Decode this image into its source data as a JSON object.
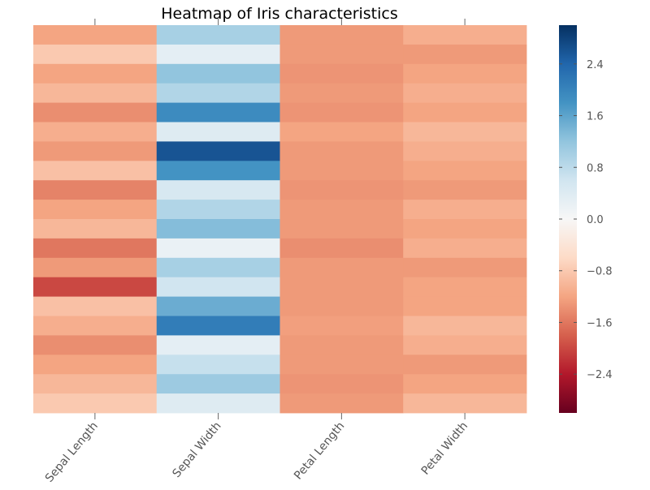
{
  "chart_data": {
    "type": "heatmap",
    "title": "Heatmap of Iris characteristics",
    "xlabel": "",
    "ylabel": "",
    "columns": [
      "Sepal Length",
      "Sepal Width",
      "Petal Length",
      "Petal Width"
    ],
    "row_count": 150,
    "colorscale": "RdBu",
    "colorbar": {
      "range": [
        -3.0,
        3.0
      ],
      "ticks": [
        -2.4,
        -1.6,
        -0.8,
        0.0,
        0.8,
        1.6,
        2.4
      ],
      "tick_labels": [
        "−2.4",
        "−1.6",
        "−0.8",
        "0.0",
        "0.8",
        "1.6",
        "2.4"
      ]
    },
    "values": [
      [
        -1.2,
        -0.8,
        -1.2,
        -1.0,
        -1.4,
        -1.1,
        -1.3,
        -0.9,
        -1.5,
        -1.2,
        -1.0,
        -1.6,
        -1.3,
        -2.0,
        -0.9,
        -1.1,
        -1.4,
        -1.2,
        -1.0,
        -0.8
      ],
      [
        1.0,
        0.3,
        1.2,
        0.9,
        1.9,
        0.4,
        2.6,
        1.8,
        0.5,
        0.9,
        1.3,
        0.2,
        1.0,
        0.6,
        1.5,
        2.1,
        0.3,
        0.7,
        1.1,
        0.4
      ],
      [
        -1.3,
        -1.3,
        -1.35,
        -1.3,
        -1.35,
        -1.2,
        -1.3,
        -1.3,
        -1.35,
        -1.3,
        -1.3,
        -1.4,
        -1.3,
        -1.3,
        -1.3,
        -1.25,
        -1.3,
        -1.3,
        -1.35,
        -1.3
      ],
      [
        -1.1,
        -1.3,
        -1.2,
        -1.1,
        -1.2,
        -1.0,
        -1.1,
        -1.2,
        -1.3,
        -1.1,
        -1.2,
        -1.1,
        -1.3,
        -1.2,
        -1.2,
        -1.0,
        -1.1,
        -1.3,
        -1.2,
        -1.0
      ]
    ],
    "ylim": [
      0,
      150
    ]
  }
}
